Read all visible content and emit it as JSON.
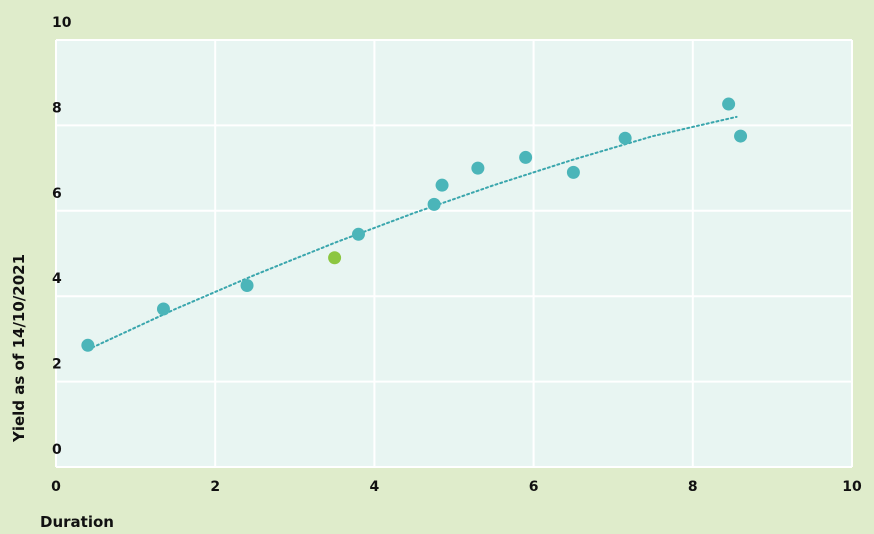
{
  "chart_data": {
    "type": "scatter",
    "xlabel": "Duration",
    "ylabel": "Yield as of 14/10/2021",
    "xlim": [
      0,
      10
    ],
    "ylim": [
      0,
      10
    ],
    "xticks": [
      "0",
      "2",
      "4",
      "6",
      "8",
      "10"
    ],
    "yticks": [
      "0",
      "2",
      "4",
      "6",
      "8",
      "10"
    ],
    "grid": true,
    "series": [
      {
        "color": "#4bb5b9",
        "points": [
          {
            "x": 0.4,
            "y": 2.85
          },
          {
            "x": 1.35,
            "y": 3.7
          },
          {
            "x": 2.4,
            "y": 4.25
          },
          {
            "x": 3.8,
            "y": 5.45
          },
          {
            "x": 4.75,
            "y": 6.15
          },
          {
            "x": 4.85,
            "y": 6.6
          },
          {
            "x": 5.3,
            "y": 7.0
          },
          {
            "x": 5.9,
            "y": 7.25
          },
          {
            "x": 6.5,
            "y": 6.9
          },
          {
            "x": 7.15,
            "y": 7.7
          },
          {
            "x": 8.45,
            "y": 8.5
          },
          {
            "x": 8.6,
            "y": 7.75
          }
        ]
      },
      {
        "color": "#8cc640",
        "points": [
          {
            "x": 3.5,
            "y": 4.9
          }
        ]
      }
    ],
    "trendline": {
      "style": "dotted",
      "color": "#3aa6ad",
      "x_range": [
        0.4,
        8.55
      ],
      "points": [
        {
          "x": 0.4,
          "y": 2.75
        },
        {
          "x": 1.5,
          "y": 3.7
        },
        {
          "x": 2.5,
          "y": 4.5
        },
        {
          "x": 3.5,
          "y": 5.25
        },
        {
          "x": 4.5,
          "y": 5.95
        },
        {
          "x": 5.5,
          "y": 6.6
        },
        {
          "x": 6.5,
          "y": 7.2
        },
        {
          "x": 7.5,
          "y": 7.75
        },
        {
          "x": 8.55,
          "y": 8.2
        }
      ]
    }
  }
}
